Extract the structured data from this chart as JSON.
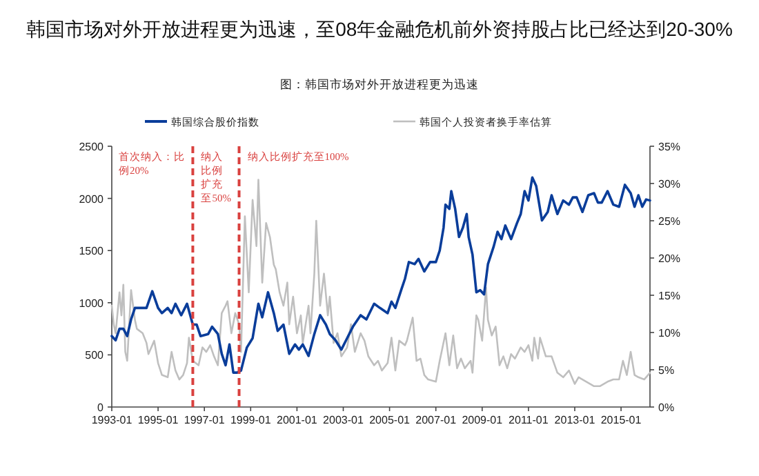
{
  "chart_data": {
    "type": "line",
    "title": "韩国市场对外开放进程更为迅速，至08年金融危机前外资持股占比已经达到20-30%",
    "subtitle": "图：韩国市场对外开放进程更为迅速",
    "xlim": [
      "1993-01",
      "2016-04"
    ],
    "xticks": [
      "1993-01",
      "1995-01",
      "1997-01",
      "1999-01",
      "2001-01",
      "2003-01",
      "2005-01",
      "2007-01",
      "2009-01",
      "2011-01",
      "2013-01",
      "2015-01"
    ],
    "ylim": [
      0,
      2500
    ],
    "yticks": [
      0,
      500,
      1000,
      1500,
      2000,
      2500
    ],
    "y2lim": [
      0,
      35
    ],
    "y2ticks": [
      {
        "value": 0,
        "label": "0%"
      },
      {
        "value": 5,
        "label": "5%"
      },
      {
        "value": 10,
        "label": "10%"
      },
      {
        "value": 15,
        "label": "15%"
      },
      {
        "value": 20,
        "label": "20%"
      },
      {
        "value": 25,
        "label": "25%"
      },
      {
        "value": 30,
        "label": "30%"
      },
      {
        "value": 35,
        "label": "35%"
      }
    ],
    "legend": "top",
    "series": [
      {
        "name": "韩国综合股价指数",
        "color": "#0a3d9a",
        "x": [
          "1993-01",
          "1993-03",
          "1993-05",
          "1993-07",
          "1993-09",
          "1993-11",
          "1994-01",
          "1994-05",
          "1994-07",
          "1994-10",
          "1995-01",
          "1995-03",
          "1995-06",
          "1995-08",
          "1995-10",
          "1996-01",
          "1996-04",
          "1996-07",
          "1996-09",
          "1996-11",
          "1997-03",
          "1997-05",
          "1997-08",
          "1997-10",
          "1997-12",
          "1998-02",
          "1998-04",
          "1998-06",
          "1998-08",
          "1998-11",
          "1999-02",
          "1999-05",
          "1999-07",
          "1999-10",
          "2000-01",
          "2000-03",
          "2000-06",
          "2000-09",
          "2000-12",
          "2001-02",
          "2001-04",
          "2001-07",
          "2001-10",
          "2002-01",
          "2002-04",
          "2002-06",
          "2002-09",
          "2002-12",
          "2003-03",
          "2003-06",
          "2003-10",
          "2004-01",
          "2004-05",
          "2004-08",
          "2004-12",
          "2005-02",
          "2005-04",
          "2005-07",
          "2005-09",
          "2005-11",
          "2006-02",
          "2006-04",
          "2006-07",
          "2006-10",
          "2007-01",
          "2007-03",
          "2007-05",
          "2007-06",
          "2007-08",
          "2007-09",
          "2007-11",
          "2008-01",
          "2008-03",
          "2008-05",
          "2008-06",
          "2008-08",
          "2008-10",
          "2008-12",
          "2009-02",
          "2009-04",
          "2009-07",
          "2009-09",
          "2009-11",
          "2010-01",
          "2010-04",
          "2010-07",
          "2010-09",
          "2010-11",
          "2011-01",
          "2011-03",
          "2011-05",
          "2011-07",
          "2011-08",
          "2011-11",
          "2012-01",
          "2012-04",
          "2012-07",
          "2012-10",
          "2012-12",
          "2013-02",
          "2013-05",
          "2013-08",
          "2013-11",
          "2014-01",
          "2014-03",
          "2014-06",
          "2014-09",
          "2014-12",
          "2015-03",
          "2015-06",
          "2015-08",
          "2015-10",
          "2015-12",
          "2016-02",
          "2016-04"
        ],
        "values": [
          680,
          640,
          750,
          750,
          680,
          840,
          950,
          950,
          950,
          1110,
          950,
          900,
          950,
          900,
          990,
          880,
          990,
          790,
          790,
          680,
          700,
          770,
          700,
          510,
          400,
          600,
          330,
          330,
          350,
          570,
          660,
          990,
          860,
          1100,
          900,
          730,
          790,
          510,
          600,
          550,
          600,
          490,
          700,
          880,
          790,
          700,
          640,
          550,
          660,
          770,
          880,
          840,
          990,
          950,
          900,
          1010,
          950,
          1120,
          1230,
          1390,
          1370,
          1420,
          1300,
          1390,
          1390,
          1500,
          1720,
          1940,
          1900,
          2070,
          1900,
          1630,
          1720,
          1850,
          1630,
          1460,
          1100,
          1120,
          1080,
          1370,
          1540,
          1680,
          1610,
          1740,
          1610,
          1760,
          1850,
          2070,
          1980,
          2200,
          2120,
          1900,
          1790,
          1870,
          2030,
          1850,
          1980,
          1940,
          2010,
          2010,
          1870,
          2030,
          2050,
          1960,
          1960,
          2070,
          1940,
          1920,
          2130,
          2050,
          1920,
          2030,
          1920,
          1990,
          1980
        ]
      },
      {
        "name": "韩国个人投资者换手率估算",
        "color": "#bfbfbf",
        "axis": "y2",
        "x": [
          "1993-01",
          "1993-02",
          "1993-03",
          "1993-05",
          "1993-06",
          "1993-07",
          "1993-08",
          "1993-09",
          "1993-11",
          "1994-01",
          "1994-02",
          "1994-05",
          "1994-07",
          "1994-08",
          "1994-11",
          "1995-01",
          "1995-03",
          "1995-06",
          "1995-08",
          "1995-10",
          "1995-12",
          "1996-02",
          "1996-04",
          "1996-05",
          "1996-07",
          "1996-10",
          "1996-12",
          "1997-02",
          "1997-04",
          "1997-06",
          "1997-08",
          "1997-10",
          "1997-12",
          "1998-01",
          "1998-03",
          "1998-05",
          "1998-07",
          "1998-08",
          "1998-10",
          "1998-12",
          "1999-02",
          "1999-04",
          "1999-05",
          "1999-07",
          "1999-09",
          "1999-11",
          "2000-01",
          "2000-02",
          "2000-04",
          "2000-06",
          "2000-08",
          "2000-09",
          "2000-11",
          "2001-01",
          "2001-03",
          "2001-04",
          "2001-07",
          "2001-08",
          "2001-10",
          "2001-11",
          "2002-01",
          "2002-03",
          "2002-05",
          "2002-06",
          "2002-08",
          "2002-10",
          "2002-12",
          "2003-03",
          "2003-05",
          "2003-07",
          "2003-10",
          "2003-12",
          "2004-02",
          "2004-05",
          "2004-07",
          "2004-09",
          "2004-12",
          "2005-02",
          "2005-04",
          "2005-06",
          "2005-09",
          "2005-10",
          "2006-01",
          "2006-03",
          "2006-05",
          "2006-07",
          "2006-09",
          "2007-01",
          "2007-03",
          "2007-06",
          "2007-08",
          "2007-10",
          "2007-12",
          "2008-02",
          "2008-04",
          "2008-07",
          "2008-08",
          "2008-10",
          "2008-11",
          "2009-01",
          "2009-03",
          "2009-04",
          "2009-06",
          "2009-08",
          "2009-10",
          "2009-12",
          "2010-02",
          "2010-04",
          "2010-06",
          "2010-09",
          "2010-11",
          "2011-01",
          "2011-03",
          "2011-04",
          "2011-06",
          "2011-07",
          "2011-10",
          "2012-01",
          "2012-04",
          "2012-07",
          "2012-10",
          "2013-01",
          "2013-03",
          "2013-07",
          "2013-11",
          "2014-02",
          "2014-06",
          "2014-09",
          "2014-12",
          "2015-02",
          "2015-04",
          "2015-06",
          "2015-08",
          "2015-10",
          "2016-01",
          "2016-04"
        ],
        "values": [
          13.6,
          11.1,
          9.9,
          15.4,
          12.3,
          16.4,
          7.4,
          6.2,
          15.7,
          11.7,
          10.5,
          9.9,
          8.6,
          7.1,
          8.9,
          5.9,
          4.3,
          4.0,
          7.4,
          4.9,
          3.7,
          4.3,
          5.9,
          9.3,
          6.2,
          5.6,
          8.0,
          7.4,
          8.3,
          6.8,
          5.6,
          12.6,
          13.6,
          14.2,
          9.9,
          12.6,
          11.1,
          7.4,
          25.6,
          15.4,
          27.8,
          21.6,
          30.5,
          16.7,
          24.7,
          22.8,
          19.1,
          18.5,
          15.4,
          13.6,
          16.7,
          11.1,
          14.8,
          9.9,
          12.3,
          8.6,
          13.6,
          9.9,
          17.9,
          25.0,
          13.6,
          17.9,
          12.3,
          14.8,
          8.6,
          9.9,
          6.8,
          8.0,
          11.1,
          7.4,
          9.9,
          8.9,
          6.8,
          5.6,
          6.2,
          4.9,
          5.9,
          9.3,
          4.9,
          8.9,
          8.3,
          8.9,
          12.0,
          6.2,
          6.5,
          4.3,
          3.7,
          3.4,
          6.2,
          9.9,
          5.6,
          9.6,
          5.2,
          6.5,
          5.2,
          6.2,
          4.6,
          12.3,
          11.7,
          8.9,
          16.0,
          11.7,
          9.6,
          10.8,
          5.6,
          6.8,
          5.2,
          7.1,
          6.5,
          8.0,
          7.4,
          8.3,
          6.2,
          9.3,
          6.5,
          9.3,
          6.8,
          6.8,
          4.6,
          4.0,
          4.9,
          3.1,
          4.0,
          3.4,
          2.8,
          2.8,
          3.4,
          3.7,
          3.7,
          6.2,
          4.3,
          7.4,
          4.3,
          4.0,
          3.7,
          4.6
        ]
      }
    ],
    "ref_lines": [
      {
        "axis": "x",
        "value": "1996-07",
        "color": "#d9413f",
        "line_style": "dashed"
      },
      {
        "axis": "x",
        "value": "1998-07",
        "color": "#d9413f",
        "line_style": "dashed"
      }
    ],
    "annotations": [
      "首次纳入：比例20%",
      "纳入比例扩充至50%",
      "纳入比例扩充至100%"
    ]
  }
}
